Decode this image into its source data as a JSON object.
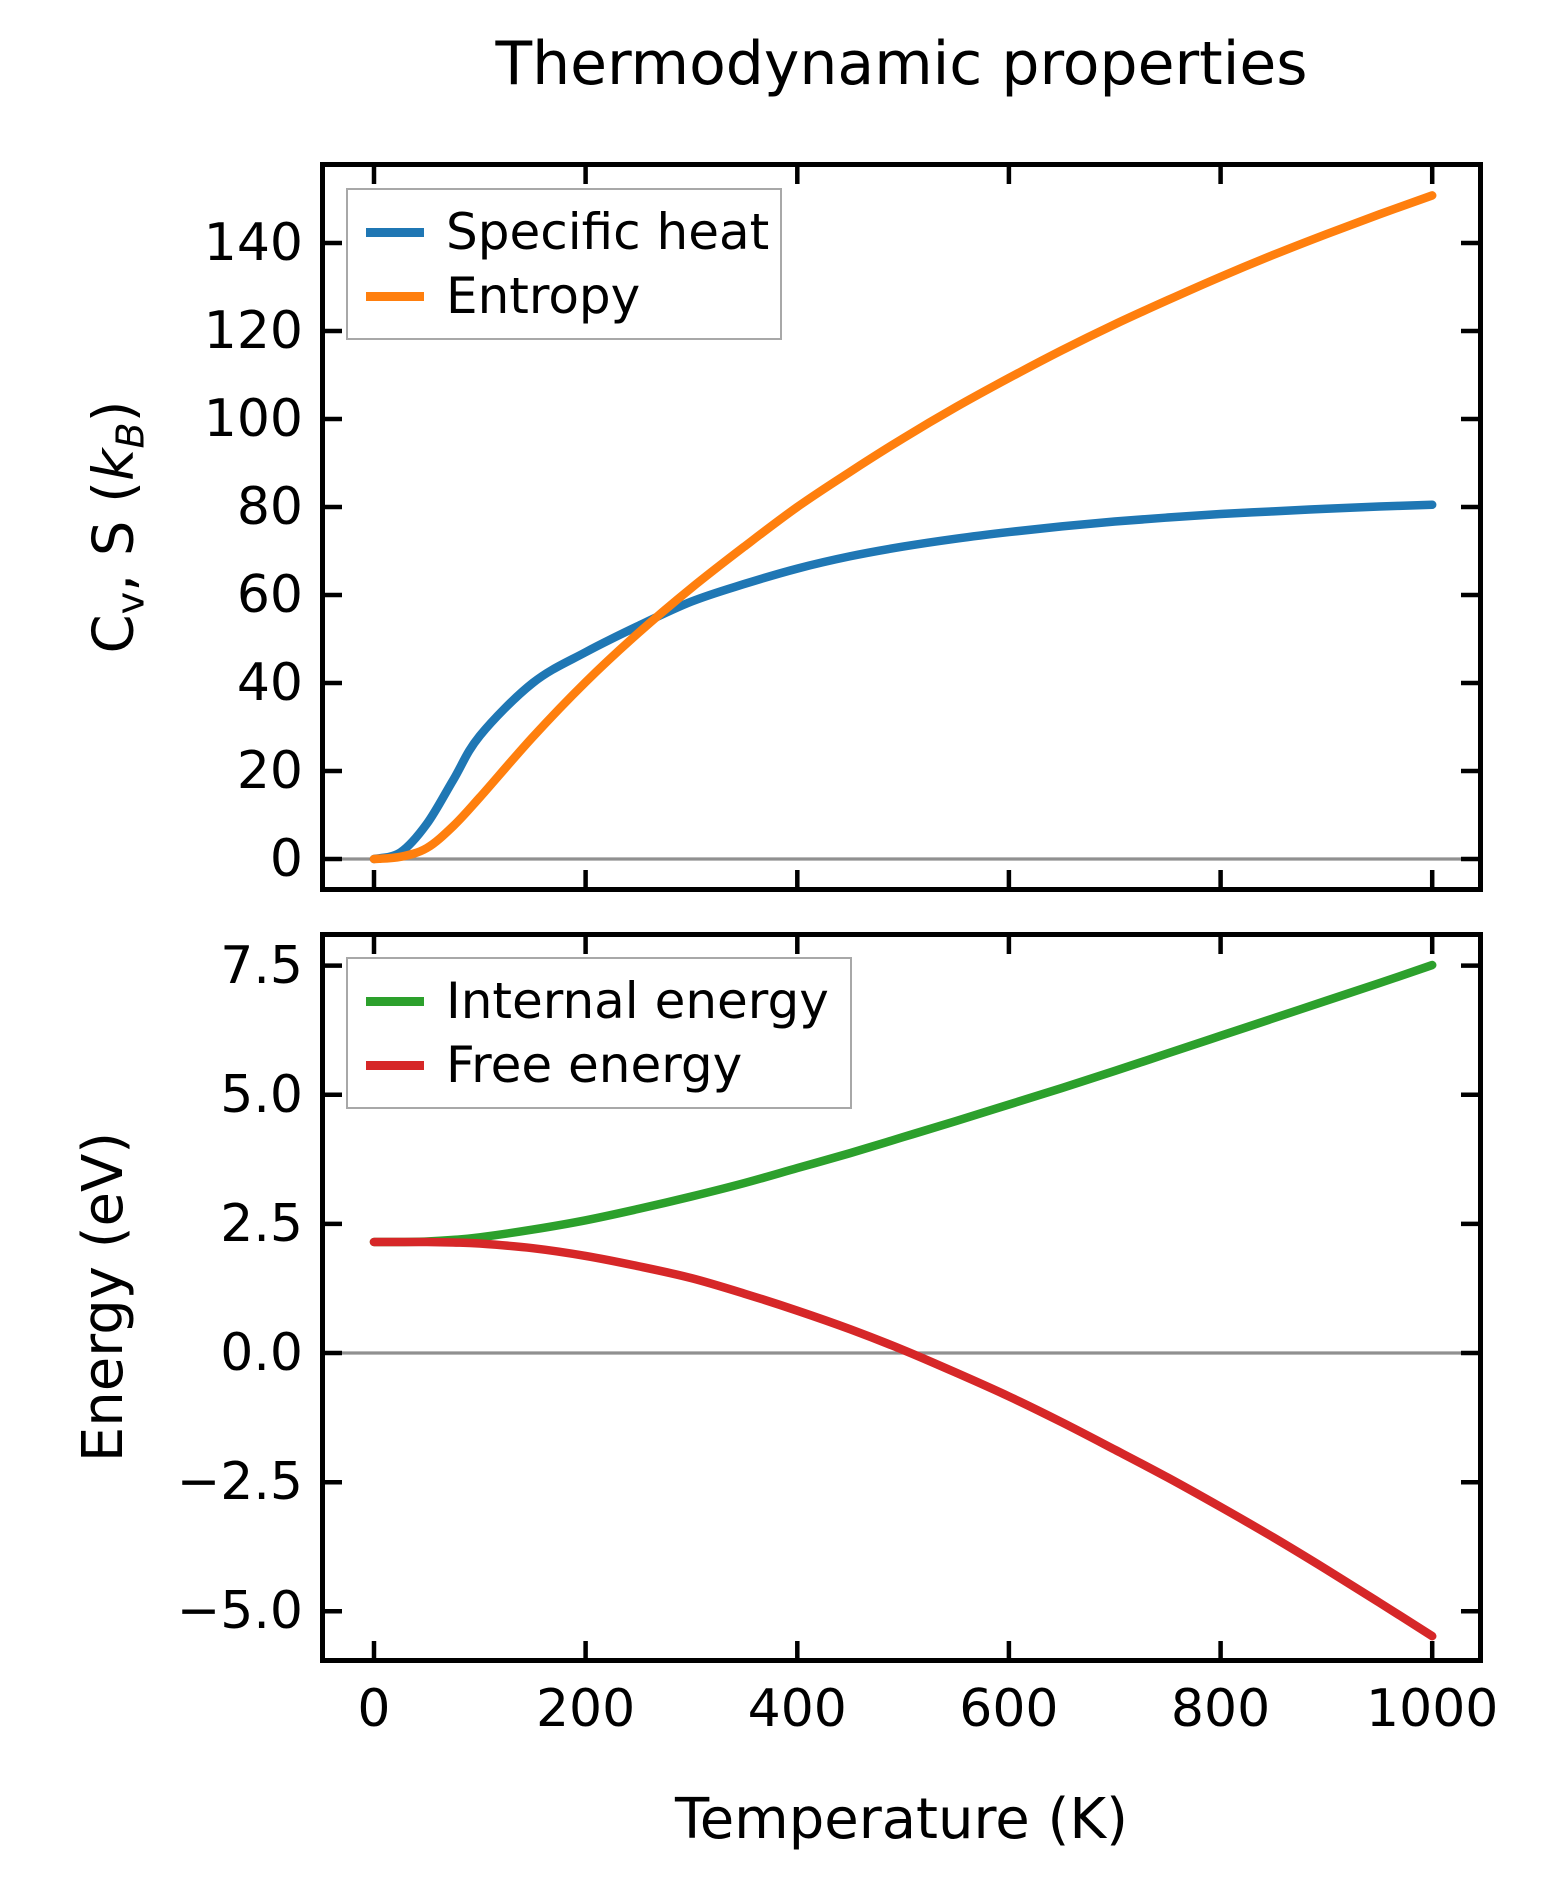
{
  "figure": {
    "title": "Thermodynamic properties",
    "background": "#ffffff"
  },
  "colors": {
    "specific_heat": "#1f77b4",
    "entropy": "#ff7f0e",
    "internal_energy": "#2ca02c",
    "free_energy": "#d62728",
    "zero_line": "#909090",
    "spine": "#000000",
    "legend_border": "#a8a8a8"
  },
  "ylabel_top_parts": {
    "c": "C",
    "c_sub": "v",
    "mid": ", S (",
    "k": "k",
    "k_sub": "B",
    "close": ")"
  },
  "chart_data": [
    {
      "type": "line",
      "panel": "top",
      "title": "Thermodynamic properties",
      "ylabel": "Cv, S (kB)",
      "xlabel": "",
      "legend_position": "upper left",
      "grid": false,
      "zero_line": true,
      "xlim": [
        -51,
        1048
      ],
      "ylim": [
        -7.5,
        158.4
      ],
      "xticks": [
        0,
        200,
        400,
        600,
        800,
        1000
      ],
      "xtick_labels": [],
      "yticks": [
        0,
        20,
        40,
        60,
        80,
        100,
        120,
        140
      ],
      "ytick_labels": [
        "0",
        "20",
        "40",
        "60",
        "80",
        "100",
        "120",
        "140"
      ],
      "x": [
        0,
        25,
        50,
        75,
        100,
        150,
        200,
        250,
        300,
        350,
        400,
        450,
        500,
        550,
        600,
        650,
        700,
        750,
        800,
        850,
        900,
        950,
        1000
      ],
      "series": [
        {
          "name": "Specific heat",
          "color": "#1f77b4",
          "values": [
            0,
            1.5,
            8,
            18,
            28,
            40,
            47,
            53,
            58.5,
            62.5,
            66,
            68.8,
            71,
            72.8,
            74.3,
            75.6,
            76.7,
            77.6,
            78.4,
            79.0,
            79.6,
            80.1,
            80.5
          ]
        },
        {
          "name": "Entropy",
          "color": "#ff7f0e",
          "values": [
            0,
            0.5,
            2.5,
            7.5,
            14,
            27.7,
            40.2,
            51.4,
            61.6,
            71,
            80,
            88,
            95.6,
            102.7,
            109.3,
            115.6,
            121.5,
            127,
            132.3,
            137.3,
            142,
            146.5,
            150.8
          ]
        }
      ]
    },
    {
      "type": "line",
      "panel": "bottom",
      "title": "",
      "ylabel": "Energy (eV)",
      "xlabel": "Temperature (K)",
      "legend_position": "upper left",
      "grid": false,
      "zero_line": true,
      "xlim": [
        -51,
        1048
      ],
      "ylim": [
        -6.0,
        8.15
      ],
      "xticks": [
        0,
        200,
        400,
        600,
        800,
        1000
      ],
      "xtick_labels": [
        "0",
        "200",
        "400",
        "600",
        "800",
        "1000"
      ],
      "yticks": [
        -5.0,
        -2.5,
        0.0,
        2.5,
        5.0,
        7.5
      ],
      "ytick_labels": [
        "−5.0",
        "−2.5",
        "0.0",
        "2.5",
        "5.0",
        "7.5"
      ],
      "x": [
        0,
        25,
        50,
        75,
        100,
        150,
        200,
        250,
        300,
        350,
        400,
        450,
        500,
        550,
        600,
        650,
        700,
        750,
        800,
        850,
        900,
        950,
        1000
      ],
      "series": [
        {
          "name": "Internal energy",
          "color": "#2ca02c",
          "values": [
            2.15,
            2.15,
            2.16,
            2.19,
            2.24,
            2.39,
            2.57,
            2.79,
            3.03,
            3.29,
            3.58,
            3.87,
            4.18,
            4.49,
            4.81,
            5.13,
            5.46,
            5.8,
            6.14,
            6.48,
            6.82,
            7.16,
            7.51
          ]
        },
        {
          "name": "Free energy",
          "color": "#d62728",
          "values": [
            2.15,
            2.15,
            2.15,
            2.14,
            2.12,
            2.03,
            1.88,
            1.68,
            1.45,
            1.15,
            0.82,
            0.46,
            0.06,
            -0.38,
            -0.84,
            -1.34,
            -1.87,
            -2.41,
            -2.98,
            -3.57,
            -4.19,
            -4.83,
            -5.48
          ]
        }
      ]
    }
  ]
}
